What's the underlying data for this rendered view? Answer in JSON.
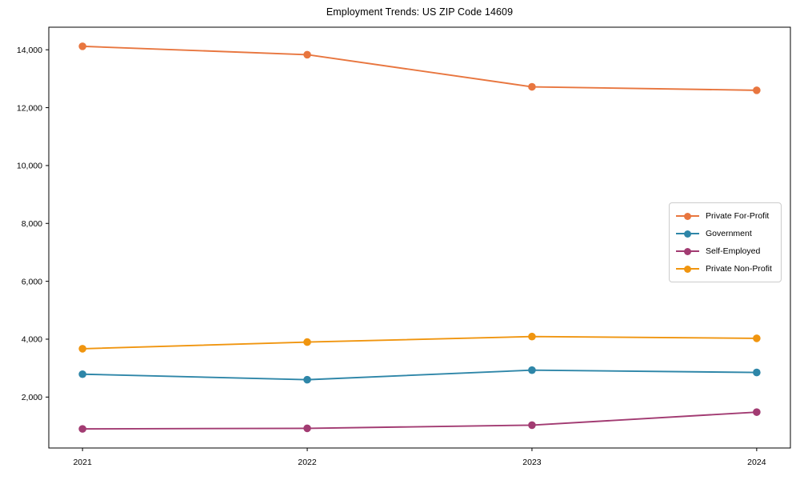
{
  "chart_data": {
    "type": "line",
    "title": "Employment Trends: US ZIP Code 14609",
    "xlabel": "",
    "ylabel": "",
    "x": [
      2021,
      2022,
      2023,
      2024
    ],
    "x_tick_labels": [
      "2021",
      "2022",
      "2023",
      "2024"
    ],
    "series": [
      {
        "name": "Private For-Profit",
        "color": "#E8763F",
        "values": [
          14120,
          13830,
          12720,
          12600
        ]
      },
      {
        "name": "Government",
        "color": "#2E86A8",
        "values": [
          2790,
          2600,
          2930,
          2850
        ]
      },
      {
        "name": "Self-Employed",
        "color": "#A23B72",
        "values": [
          900,
          920,
          1030,
          1480
        ]
      },
      {
        "name": "Private Non-Profit",
        "color": "#F0950F",
        "values": [
          3670,
          3900,
          4090,
          4030
        ]
      }
    ],
    "yticks": [
      2000,
      4000,
      6000,
      8000,
      10000,
      12000,
      14000
    ],
    "ytick_labels": [
      "2,000",
      "4,000",
      "6,000",
      "8,000",
      "10,000",
      "12,000",
      "14,000"
    ],
    "xlim": [
      2020.85,
      2024.15
    ],
    "ylim": [
      240,
      14780
    ],
    "grid": false,
    "legend_position": "center right",
    "spine_color": "#000000"
  }
}
